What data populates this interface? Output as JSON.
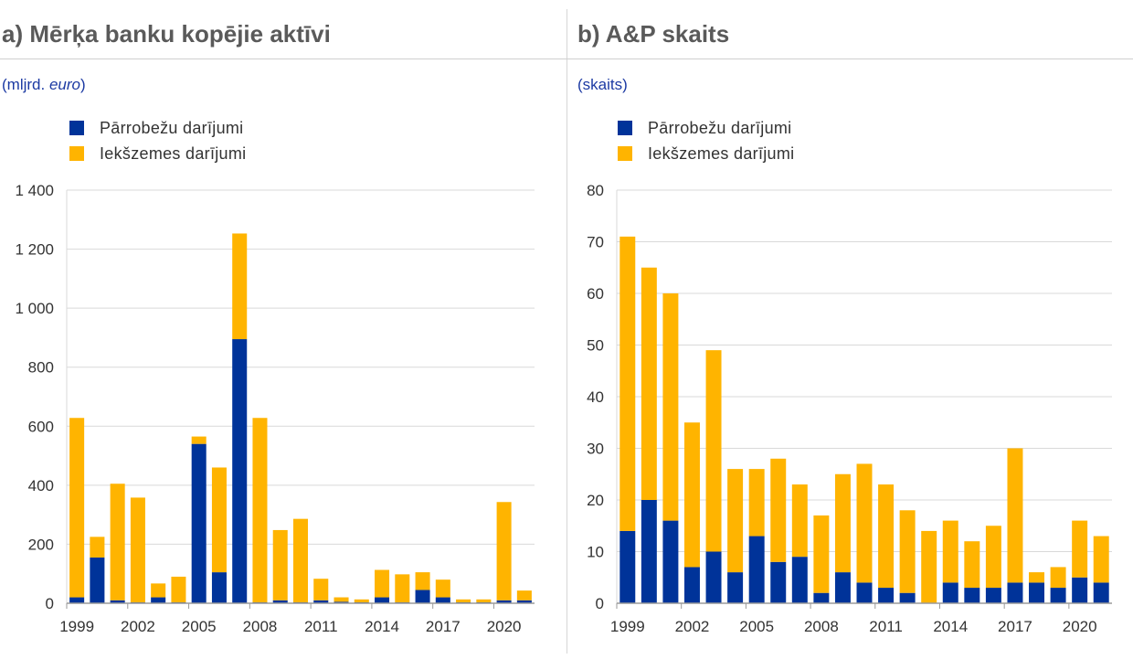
{
  "colors": {
    "cross_border": "#003399",
    "domestic": "#ffb400",
    "grid": "#d9d9d9",
    "axis": "#9a9a9a"
  },
  "panels": [
    {
      "title": "a) Mērķa banku kopējie aktīvi",
      "unit_prefix": "(mljrd. ",
      "unit_italic": "euro",
      "unit_suffix": ")",
      "legend": [
        {
          "label": "Pārrobežu darījumi"
        },
        {
          "label": "Iekšzemes darījumi"
        }
      ]
    },
    {
      "title": "b) A&P skaits",
      "unit_prefix": "(skaits)",
      "unit_italic": "",
      "unit_suffix": "",
      "legend": [
        {
          "label": "Pārrobežu darījumi"
        },
        {
          "label": "Iekšzemes darījumi"
        }
      ]
    }
  ],
  "chart_data": [
    {
      "type": "bar",
      "stacked": true,
      "title": "a) Mērķa banku kopējie aktīvi",
      "ylabel": "(mljrd. euro)",
      "years": [
        1999,
        2000,
        2001,
        2002,
        2003,
        2004,
        2005,
        2006,
        2007,
        2008,
        2009,
        2010,
        2011,
        2012,
        2013,
        2014,
        2015,
        2016,
        2017,
        2018,
        2019,
        2020,
        2021
      ],
      "xtick_labels": [
        "1999",
        "2002",
        "2005",
        "2008",
        "2011",
        "2014",
        "2017",
        "2020"
      ],
      "xtick_years": [
        1999,
        2002,
        2005,
        2008,
        2011,
        2014,
        2017,
        2020
      ],
      "ylim": [
        0,
        1400
      ],
      "yticks": [
        0,
        200,
        400,
        600,
        800,
        1000,
        1200,
        1400
      ],
      "ytick_labels": [
        "0",
        "200",
        "400",
        "600",
        "800",
        "1 000",
        "1 200",
        "1 400"
      ],
      "series": [
        {
          "name": "Pārrobežu darījumi",
          "values": [
            20,
            155,
            10,
            3,
            20,
            3,
            540,
            105,
            895,
            3,
            10,
            3,
            10,
            5,
            3,
            20,
            3,
            45,
            20,
            3,
            3,
            10,
            10
          ]
        },
        {
          "name": "Iekšzemes darījumi",
          "values": [
            608,
            70,
            395,
            355,
            47,
            87,
            25,
            355,
            358,
            625,
            238,
            283,
            73,
            15,
            10,
            93,
            95,
            60,
            60,
            10,
            10,
            333,
            33
          ]
        }
      ]
    },
    {
      "type": "bar",
      "stacked": true,
      "title": "b) A&P skaits",
      "ylabel": "(skaits)",
      "years": [
        1999,
        2000,
        2001,
        2002,
        2003,
        2004,
        2005,
        2006,
        2007,
        2008,
        2009,
        2010,
        2011,
        2012,
        2013,
        2014,
        2015,
        2016,
        2017,
        2018,
        2019,
        2020,
        2021
      ],
      "xtick_labels": [
        "1999",
        "2002",
        "2005",
        "2008",
        "2011",
        "2014",
        "2017",
        "2020"
      ],
      "xtick_years": [
        1999,
        2002,
        2005,
        2008,
        2011,
        2014,
        2017,
        2020
      ],
      "ylim": [
        0,
        80
      ],
      "yticks": [
        0,
        10,
        20,
        30,
        40,
        50,
        60,
        70,
        80
      ],
      "ytick_labels": [
        "0",
        "10",
        "20",
        "30",
        "40",
        "50",
        "60",
        "70",
        "80"
      ],
      "series": [
        {
          "name": "Pārrobežu darījumi",
          "values": [
            14,
            20,
            16,
            7,
            10,
            6,
            13,
            8,
            9,
            2,
            6,
            4,
            3,
            2,
            0,
            4,
            3,
            3,
            4,
            4,
            3,
            5,
            4
          ]
        },
        {
          "name": "Iekšzemes darījumi",
          "values": [
            57,
            45,
            44,
            28,
            39,
            20,
            13,
            20,
            14,
            15,
            19,
            23,
            20,
            16,
            14,
            12,
            9,
            12,
            26,
            2,
            4,
            11,
            9
          ]
        }
      ]
    }
  ]
}
